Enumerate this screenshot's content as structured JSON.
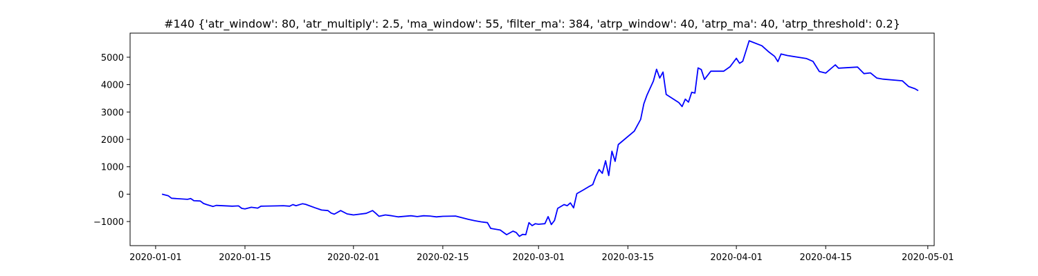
{
  "chart_data": {
    "type": "line",
    "title": "#140 {'atr_window': 80, 'atr_multiply': 2.5, 'ma_window': 55, 'filter_ma': 384, 'atrp_window': 40, 'atrp_ma': 40, 'atrp_threshold': 0.2}",
    "xlabel": "",
    "ylabel": "",
    "grid": false,
    "legend": "none",
    "xlim": [
      "2019-12-28",
      "2020-05-02"
    ],
    "ylim": [
      -1880,
      5880
    ],
    "x_ticks": [
      {
        "date": "2020-01-01",
        "label": "2020-01-01"
      },
      {
        "date": "2020-01-15",
        "label": "2020-01-15"
      },
      {
        "date": "2020-02-01",
        "label": "2020-02-01"
      },
      {
        "date": "2020-02-15",
        "label": "2020-02-15"
      },
      {
        "date": "2020-03-01",
        "label": "2020-03-01"
      },
      {
        "date": "2020-03-15",
        "label": "2020-03-15"
      },
      {
        "date": "2020-04-01",
        "label": "2020-04-01"
      },
      {
        "date": "2020-04-15",
        "label": "2020-04-15"
      },
      {
        "date": "2020-05-01",
        "label": "2020-05-01"
      }
    ],
    "y_ticks": [
      {
        "value": -1000,
        "label": "−1000"
      },
      {
        "value": 0,
        "label": "0"
      },
      {
        "value": 1000,
        "label": "1000"
      },
      {
        "value": 2000,
        "label": "2000"
      },
      {
        "value": 3000,
        "label": "3000"
      },
      {
        "value": 4000,
        "label": "4000"
      },
      {
        "value": 5000,
        "label": "5000"
      }
    ],
    "series": [
      {
        "color": "#0000ff",
        "points": [
          [
            "2020-01-02",
            0
          ],
          [
            "2020-01-03",
            -60
          ],
          [
            "2020-01-03T12:00",
            -150
          ],
          [
            "2020-01-06",
            -190
          ],
          [
            "2020-01-06T12:00",
            -160
          ],
          [
            "2020-01-07",
            -240
          ],
          [
            "2020-01-08",
            -250
          ],
          [
            "2020-01-08T12:00",
            -340
          ],
          [
            "2020-01-09",
            -380
          ],
          [
            "2020-01-10",
            -450
          ],
          [
            "2020-01-10T12:00",
            -410
          ],
          [
            "2020-01-13",
            -440
          ],
          [
            "2020-01-14",
            -430
          ],
          [
            "2020-01-14T12:00",
            -520
          ],
          [
            "2020-01-15",
            -540
          ],
          [
            "2020-01-16",
            -480
          ],
          [
            "2020-01-17",
            -510
          ],
          [
            "2020-01-17T12:00",
            -440
          ],
          [
            "2020-01-20",
            -430
          ],
          [
            "2020-01-21",
            -420
          ],
          [
            "2020-01-22",
            -440
          ],
          [
            "2020-01-22T12:00",
            -380
          ],
          [
            "2020-01-23",
            -420
          ],
          [
            "2020-01-24",
            -350
          ],
          [
            "2020-01-24T12:00",
            -370
          ],
          [
            "2020-01-26",
            -500
          ],
          [
            "2020-01-27",
            -580
          ],
          [
            "2020-01-28",
            -600
          ],
          [
            "2020-01-28T12:00",
            -690
          ],
          [
            "2020-01-29",
            -730
          ],
          [
            "2020-01-30",
            -600
          ],
          [
            "2020-01-31",
            -720
          ],
          [
            "2020-02-01",
            -760
          ],
          [
            "2020-02-03",
            -700
          ],
          [
            "2020-02-04",
            -600
          ],
          [
            "2020-02-04T12:00",
            -700
          ],
          [
            "2020-02-05",
            -810
          ],
          [
            "2020-02-06",
            -760
          ],
          [
            "2020-02-07",
            -790
          ],
          [
            "2020-02-08",
            -830
          ],
          [
            "2020-02-10",
            -790
          ],
          [
            "2020-02-11",
            -820
          ],
          [
            "2020-02-12",
            -790
          ],
          [
            "2020-02-13",
            -800
          ],
          [
            "2020-02-14",
            -830
          ],
          [
            "2020-02-15",
            -810
          ],
          [
            "2020-02-17",
            -800
          ],
          [
            "2020-02-19",
            -920
          ],
          [
            "2020-02-20",
            -970
          ],
          [
            "2020-02-21",
            -1010
          ],
          [
            "2020-02-22",
            -1040
          ],
          [
            "2020-02-22T12:00",
            -1250
          ],
          [
            "2020-02-24",
            -1310
          ],
          [
            "2020-02-25",
            -1480
          ],
          [
            "2020-02-26",
            -1350
          ],
          [
            "2020-02-26T12:00",
            -1400
          ],
          [
            "2020-02-27",
            -1540
          ],
          [
            "2020-02-27T12:00",
            -1470
          ],
          [
            "2020-02-28",
            -1480
          ],
          [
            "2020-02-28T12:00",
            -1040
          ],
          [
            "2020-02-29",
            -1150
          ],
          [
            "2020-02-29T12:00",
            -1080
          ],
          [
            "2020-03-01",
            -1100
          ],
          [
            "2020-03-02",
            -1080
          ],
          [
            "2020-03-02T12:00",
            -820
          ],
          [
            "2020-03-03",
            -1110
          ],
          [
            "2020-03-03T12:00",
            -960
          ],
          [
            "2020-03-04",
            -520
          ],
          [
            "2020-03-05",
            -380
          ],
          [
            "2020-03-05T12:00",
            -420
          ],
          [
            "2020-03-06",
            -320
          ],
          [
            "2020-03-06T12:00",
            -500
          ],
          [
            "2020-03-07",
            20
          ],
          [
            "2020-03-08",
            150
          ],
          [
            "2020-03-09",
            290
          ],
          [
            "2020-03-09T12:00",
            350
          ],
          [
            "2020-03-10",
            660
          ],
          [
            "2020-03-10T12:00",
            900
          ],
          [
            "2020-03-11",
            760
          ],
          [
            "2020-03-11T12:00",
            1220
          ],
          [
            "2020-03-12",
            680
          ],
          [
            "2020-03-12T12:00",
            1570
          ],
          [
            "2020-03-13",
            1200
          ],
          [
            "2020-03-13T12:00",
            1810
          ],
          [
            "2020-03-16",
            2300
          ],
          [
            "2020-03-17",
            2730
          ],
          [
            "2020-03-17T12:00",
            3300
          ],
          [
            "2020-03-18",
            3620
          ],
          [
            "2020-03-19",
            4130
          ],
          [
            "2020-03-19T12:00",
            4560
          ],
          [
            "2020-03-20",
            4240
          ],
          [
            "2020-03-20T12:00",
            4460
          ],
          [
            "2020-03-21",
            3640
          ],
          [
            "2020-03-23",
            3340
          ],
          [
            "2020-03-23T12:00",
            3200
          ],
          [
            "2020-03-24",
            3470
          ],
          [
            "2020-03-24T12:00",
            3360
          ],
          [
            "2020-03-25",
            3720
          ],
          [
            "2020-03-25T12:00",
            3690
          ],
          [
            "2020-03-26",
            4610
          ],
          [
            "2020-03-26T12:00",
            4550
          ],
          [
            "2020-03-27",
            4190
          ],
          [
            "2020-03-28",
            4490
          ],
          [
            "2020-03-30",
            4490
          ],
          [
            "2020-03-31",
            4650
          ],
          [
            "2020-04-01",
            4960
          ],
          [
            "2020-04-01T12:00",
            4780
          ],
          [
            "2020-04-02",
            4850
          ],
          [
            "2020-04-03",
            5600
          ],
          [
            "2020-04-05",
            5420
          ],
          [
            "2020-04-06",
            5210
          ],
          [
            "2020-04-07",
            5030
          ],
          [
            "2020-04-07T12:00",
            4840
          ],
          [
            "2020-04-08",
            5120
          ],
          [
            "2020-04-09",
            5060
          ],
          [
            "2020-04-12",
            4950
          ],
          [
            "2020-04-13",
            4850
          ],
          [
            "2020-04-14",
            4480
          ],
          [
            "2020-04-15",
            4420
          ],
          [
            "2020-04-16",
            4620
          ],
          [
            "2020-04-16T12:00",
            4720
          ],
          [
            "2020-04-17",
            4600
          ],
          [
            "2020-04-20",
            4640
          ],
          [
            "2020-04-21",
            4400
          ],
          [
            "2020-04-22",
            4430
          ],
          [
            "2020-04-23",
            4240
          ],
          [
            "2020-04-24",
            4200
          ],
          [
            "2020-04-27",
            4140
          ],
          [
            "2020-04-28",
            3930
          ],
          [
            "2020-04-29",
            3850
          ],
          [
            "2020-04-29T12:00",
            3780
          ]
        ]
      }
    ]
  }
}
